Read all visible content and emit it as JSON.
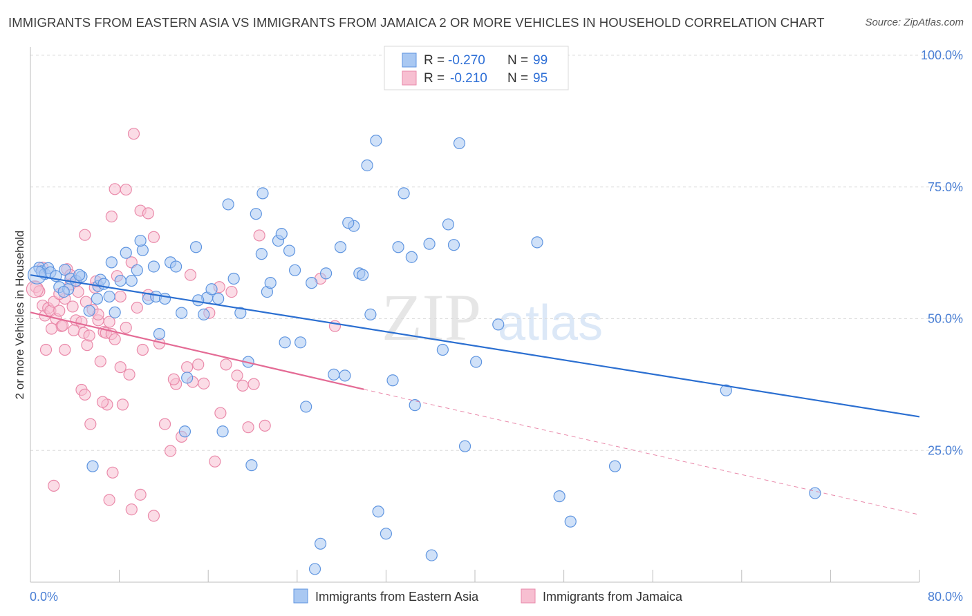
{
  "title": "IMMIGRANTS FROM EASTERN ASIA VS IMMIGRANTS FROM JAMAICA 2 OR MORE VEHICLES IN HOUSEHOLD CORRELATION CHART",
  "source": "Source: ZipAtlas.com",
  "watermark": {
    "zip": "ZIP",
    "atlas": "atlas"
  },
  "colors": {
    "blue_fill": "#a9c8f2",
    "blue_stroke": "#5f95e0",
    "blue_line": "#2b6fd1",
    "pink_fill": "#f7bfd1",
    "pink_stroke": "#ea8aaa",
    "pink_line": "#e46b95",
    "tick_label": "#4a7fd4",
    "grid": "#dcdcdc"
  },
  "legend": {
    "rows": [
      {
        "r_label": "R =",
        "r_value": "-0.270",
        "n_label": "N =",
        "n_value": "99"
      },
      {
        "r_label": "R =",
        "r_value": "-0.210",
        "n_label": "N =",
        "n_value": "95"
      }
    ]
  },
  "chart_data": {
    "type": "scatter",
    "title": "IMMIGRANTS FROM EASTERN ASIA VS IMMIGRANTS FROM JAMAICA 2 OR MORE VEHICLES IN HOUSEHOLD CORRELATION CHART",
    "xlabel": "",
    "ylabel": "2 or more Vehicles in Household",
    "xlim": [
      0,
      80
    ],
    "ylim": [
      0,
      100
    ],
    "x_tick_labels": [
      "0.0%",
      "80.0%"
    ],
    "y_ticks": [
      25,
      50,
      75,
      100
    ],
    "y_tick_labels": [
      "25.0%",
      "50.0%",
      "75.0%",
      "100.0%"
    ],
    "grid": true,
    "legend_position": "top-center",
    "series": [
      {
        "name": "Immigrants from Eastern Asia",
        "r": -0.27,
        "n": 99,
        "trend": {
          "x0": 0,
          "y0": 58.3,
          "x1": 80,
          "y1": 31.4
        },
        "points": [
          [
            0.8,
            59.7
          ],
          [
            1.0,
            59.0
          ],
          [
            1.3,
            58.5
          ],
          [
            1.6,
            59.6
          ],
          [
            1.8,
            58.8
          ],
          [
            2.3,
            58.1
          ],
          [
            2.6,
            56.0
          ],
          [
            3.1,
            59.3
          ],
          [
            3.4,
            55.6
          ],
          [
            3.6,
            57.6
          ],
          [
            4.1,
            57.2
          ],
          [
            4.6,
            58.0
          ],
          [
            5.3,
            51.5
          ],
          [
            6.1,
            56.2
          ],
          [
            6.3,
            57.4
          ],
          [
            6.0,
            53.8
          ],
          [
            7.1,
            54.2
          ],
          [
            7.6,
            51.2
          ],
          [
            7.3,
            60.7
          ],
          [
            8.1,
            57.2
          ],
          [
            8.6,
            62.5
          ],
          [
            9.1,
            57.2
          ],
          [
            9.6,
            59.2
          ],
          [
            10.1,
            63.0
          ],
          [
            10.6,
            53.8
          ],
          [
            11.1,
            59.9
          ],
          [
            11.3,
            54.2
          ],
          [
            11.6,
            47.1
          ],
          [
            12.1,
            53.8
          ],
          [
            12.6,
            60.7
          ],
          [
            13.1,
            59.9
          ],
          [
            13.6,
            51.1
          ],
          [
            14.1,
            38.8
          ],
          [
            13.9,
            28.6
          ],
          [
            14.9,
            63.6
          ],
          [
            15.6,
            50.8
          ],
          [
            15.9,
            54.0
          ],
          [
            16.3,
            55.6
          ],
          [
            16.9,
            53.8
          ],
          [
            17.3,
            28.6
          ],
          [
            17.8,
            71.7
          ],
          [
            18.3,
            57.6
          ],
          [
            18.9,
            51.1
          ],
          [
            19.6,
            41.8
          ],
          [
            19.9,
            22.2
          ],
          [
            20.3,
            69.9
          ],
          [
            20.8,
            62.3
          ],
          [
            20.9,
            73.8
          ],
          [
            21.3,
            55.1
          ],
          [
            21.6,
            56.8
          ],
          [
            22.3,
            64.8
          ],
          [
            22.6,
            66.1
          ],
          [
            22.9,
            45.5
          ],
          [
            23.3,
            62.9
          ],
          [
            23.8,
            59.2
          ],
          [
            24.3,
            45.5
          ],
          [
            24.8,
            33.3
          ],
          [
            25.3,
            56.8
          ],
          [
            26.1,
            7.3
          ],
          [
            26.6,
            58.6
          ],
          [
            27.3,
            39.4
          ],
          [
            27.9,
            63.6
          ],
          [
            28.3,
            39.2
          ],
          [
            29.1,
            67.6
          ],
          [
            28.6,
            68.2
          ],
          [
            29.6,
            58.6
          ],
          [
            29.9,
            58.3
          ],
          [
            30.3,
            79.1
          ],
          [
            30.6,
            50.8
          ],
          [
            31.1,
            83.8
          ],
          [
            31.3,
            13.4
          ],
          [
            32.0,
            9.2
          ],
          [
            32.6,
            38.3
          ],
          [
            33.1,
            63.6
          ],
          [
            33.6,
            73.8
          ],
          [
            34.3,
            61.7
          ],
          [
            34.6,
            33.6
          ],
          [
            36.1,
            5.1
          ],
          [
            37.1,
            44.1
          ],
          [
            37.6,
            67.9
          ],
          [
            38.1,
            64.0
          ],
          [
            38.6,
            83.3
          ],
          [
            39.1,
            25.8
          ],
          [
            40.1,
            41.8
          ],
          [
            42.1,
            48.9
          ],
          [
            45.6,
            64.5
          ],
          [
            47.6,
            16.3
          ],
          [
            48.6,
            11.5
          ],
          [
            52.6,
            22.0
          ],
          [
            62.6,
            36.4
          ],
          [
            70.6,
            16.9
          ],
          [
            25.6,
            2.5
          ],
          [
            5.6,
            22.0
          ],
          [
            9.9,
            64.8
          ],
          [
            6.6,
            56.6
          ],
          [
            15.1,
            53.5
          ],
          [
            3.0,
            55.1
          ],
          [
            4.4,
            58.3
          ],
          [
            35.9,
            64.2
          ]
        ]
      },
      {
        "name": "Immigrants from Jamaica",
        "r": -0.21,
        "n": 95,
        "trend_solid": {
          "x0": 0,
          "y0": 51.2,
          "x1": 30,
          "y1": 36.6
        },
        "trend_dashed": {
          "x0": 30,
          "y0": 36.6,
          "x1": 80,
          "y1": 12.8
        },
        "points": [
          [
            0.5,
            56.0
          ],
          [
            0.8,
            55.2
          ],
          [
            1.1,
            52.5
          ],
          [
            1.3,
            50.6
          ],
          [
            1.6,
            52.0
          ],
          [
            1.8,
            51.5
          ],
          [
            2.1,
            53.2
          ],
          [
            2.3,
            50.0
          ],
          [
            2.6,
            51.5
          ],
          [
            2.8,
            48.6
          ],
          [
            3.1,
            53.8
          ],
          [
            3.3,
            59.4
          ],
          [
            3.6,
            58.3
          ],
          [
            3.8,
            52.3
          ],
          [
            4.1,
            49.7
          ],
          [
            4.3,
            55.1
          ],
          [
            4.6,
            49.4
          ],
          [
            4.8,
            47.3
          ],
          [
            5.1,
            45.0
          ],
          [
            5.3,
            46.8
          ],
          [
            5.6,
            51.7
          ],
          [
            5.8,
            55.9
          ],
          [
            6.1,
            49.7
          ],
          [
            6.3,
            41.9
          ],
          [
            6.6,
            47.5
          ],
          [
            6.8,
            47.3
          ],
          [
            7.1,
            49.4
          ],
          [
            7.3,
            47.1
          ],
          [
            7.6,
            46.1
          ],
          [
            7.8,
            58.1
          ],
          [
            8.1,
            54.2
          ],
          [
            8.6,
            48.3
          ],
          [
            8.9,
            39.4
          ],
          [
            9.1,
            60.7
          ],
          [
            9.6,
            52.1
          ],
          [
            10.1,
            44.1
          ],
          [
            10.6,
            54.5
          ],
          [
            11.1,
            65.5
          ],
          [
            11.6,
            45.3
          ],
          [
            12.1,
            30.0
          ],
          [
            12.6,
            24.9
          ],
          [
            13.1,
            37.6
          ],
          [
            13.6,
            27.6
          ],
          [
            14.1,
            40.8
          ],
          [
            14.6,
            38.0
          ],
          [
            15.1,
            41.3
          ],
          [
            15.6,
            37.7
          ],
          [
            16.1,
            51.1
          ],
          [
            16.6,
            22.9
          ],
          [
            17.1,
            32.1
          ],
          [
            17.6,
            41.3
          ],
          [
            18.1,
            55.1
          ],
          [
            18.6,
            39.2
          ],
          [
            19.1,
            37.3
          ],
          [
            19.6,
            29.4
          ],
          [
            20.1,
            37.6
          ],
          [
            20.6,
            65.8
          ],
          [
            21.1,
            29.7
          ],
          [
            9.3,
            85.1
          ],
          [
            8.6,
            74.5
          ],
          [
            9.9,
            70.5
          ],
          [
            10.6,
            70.0
          ],
          [
            7.3,
            69.4
          ],
          [
            7.6,
            74.6
          ],
          [
            4.9,
            65.9
          ],
          [
            5.9,
            57.1
          ],
          [
            6.9,
            33.7
          ],
          [
            8.3,
            33.7
          ],
          [
            4.6,
            36.5
          ],
          [
            4.9,
            35.6
          ],
          [
            3.1,
            44.1
          ],
          [
            2.9,
            48.7
          ],
          [
            6.5,
            34.2
          ],
          [
            5.4,
            30.0
          ],
          [
            7.4,
            20.8
          ],
          [
            7.1,
            15.6
          ],
          [
            9.9,
            16.6
          ],
          [
            9.1,
            13.8
          ],
          [
            11.1,
            12.6
          ],
          [
            2.1,
            18.3
          ],
          [
            1.4,
            44.1
          ],
          [
            3.9,
            47.8
          ],
          [
            2.6,
            54.7
          ],
          [
            4.1,
            57.1
          ],
          [
            6.1,
            50.8
          ],
          [
            1.1,
            59.7
          ],
          [
            8.1,
            40.8
          ],
          [
            5.0,
            53.2
          ],
          [
            3.6,
            56.5
          ],
          [
            1.9,
            48.1
          ],
          [
            26.1,
            57.6
          ],
          [
            27.4,
            48.6
          ],
          [
            14.4,
            58.3
          ],
          [
            12.9,
            38.5
          ],
          [
            17.0,
            56.0
          ]
        ]
      }
    ]
  },
  "bottom_legend": [
    {
      "label": "Immigrants from Eastern Asia"
    },
    {
      "label": "Immigrants from Jamaica"
    }
  ]
}
